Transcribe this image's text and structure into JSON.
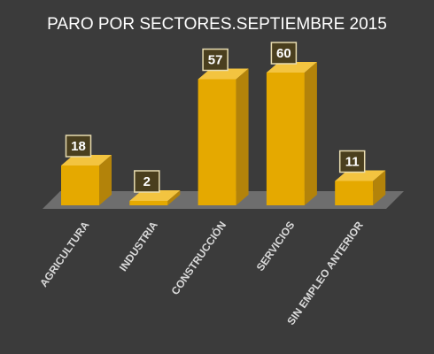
{
  "chart_data": {
    "type": "bar3d",
    "title": "PARO POR SECTORES.SEPTIEMBRE 2015",
    "categories": [
      "AGRICULTURA",
      "INDUSTRIA",
      "CONSTRUCCIÓN",
      "SERVICIOS",
      "SIN EMPLEO ANTERIOR"
    ],
    "values": [
      18,
      2,
      57,
      60,
      11
    ],
    "color": "#e5a900"
  }
}
